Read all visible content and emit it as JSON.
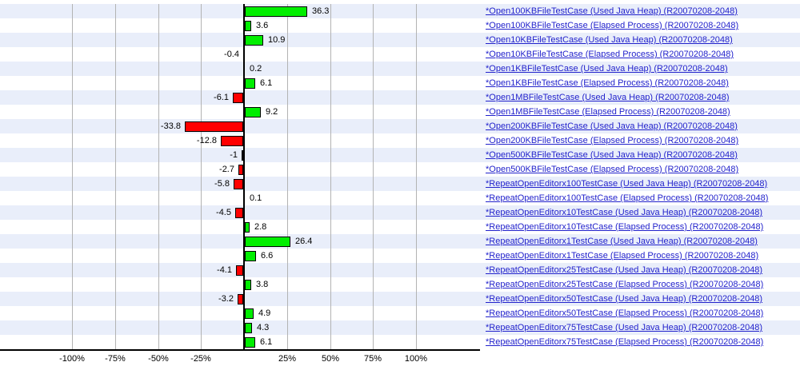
{
  "colors": {
    "positive_bar": "#00ee00",
    "negative_bar": "#ff0000",
    "bar_border": "#000000",
    "stripe": "#e9eefa",
    "stripe_alt": "#ffffff",
    "gridline": "#b3b3b3",
    "axis": "#000000",
    "link": "#2222cc",
    "value_text": "#000000"
  },
  "chart_data": {
    "type": "bar",
    "orientation": "horizontal",
    "title": "",
    "xlabel": "",
    "ylabel": "",
    "unit": "%",
    "grid": true,
    "xlim": [
      -142,
      137
    ],
    "x_ticks": [
      {
        "value": -100,
        "label": "-100%"
      },
      {
        "value": -75,
        "label": "-75%"
      },
      {
        "value": -50,
        "label": "-50%"
      },
      {
        "value": -25,
        "label": "-25%"
      },
      {
        "value": 25,
        "label": "25%"
      },
      {
        "value": 50,
        "label": "50%"
      },
      {
        "value": 75,
        "label": "75%"
      },
      {
        "value": 100,
        "label": "100%"
      }
    ],
    "rows": [
      {
        "label": "*Open100KBFileTestCase (Used Java Heap) (R20070208-2048)",
        "value": 36.3,
        "value_label": "36.3"
      },
      {
        "label": "*Open100KBFileTestCase (Elapsed Process) (R20070208-2048)",
        "value": 3.6,
        "value_label": "3.6"
      },
      {
        "label": "*Open10KBFileTestCase (Used Java Heap) (R20070208-2048)",
        "value": 10.9,
        "value_label": "10.9"
      },
      {
        "label": "*Open10KBFileTestCase (Elapsed Process) (R20070208-2048)",
        "value": -0.4,
        "value_label": "-0.4"
      },
      {
        "label": "*Open1KBFileTestCase (Used Java Heap) (R20070208-2048)",
        "value": 0.2,
        "value_label": "0.2"
      },
      {
        "label": "*Open1KBFileTestCase (Elapsed Process) (R20070208-2048)",
        "value": 6.1,
        "value_label": "6.1"
      },
      {
        "label": "*Open1MBFileTestCase (Used Java Heap) (R20070208-2048)",
        "value": -6.1,
        "value_label": "-6.1"
      },
      {
        "label": "*Open1MBFileTestCase (Elapsed Process) (R20070208-2048)",
        "value": 9.2,
        "value_label": "9.2"
      },
      {
        "label": "*Open200KBFileTestCase (Used Java Heap) (R20070208-2048)",
        "value": -33.8,
        "value_label": "-33.8"
      },
      {
        "label": "*Open200KBFileTestCase (Elapsed Process) (R20070208-2048)",
        "value": -12.8,
        "value_label": "-12.8"
      },
      {
        "label": "*Open500KBFileTestCase (Used Java Heap) (R20070208-2048)",
        "value": -1,
        "value_label": "-1"
      },
      {
        "label": "*Open500KBFileTestCase (Elapsed Process) (R20070208-2048)",
        "value": -2.7,
        "value_label": "-2.7"
      },
      {
        "label": "*RepeatOpenEditorx100TestCase (Used Java Heap) (R20070208-2048)",
        "value": -5.8,
        "value_label": "-5.8"
      },
      {
        "label": "*RepeatOpenEditorx100TestCase (Elapsed Process) (R20070208-2048)",
        "value": 0.1,
        "value_label": "0.1"
      },
      {
        "label": "*RepeatOpenEditorx10TestCase (Used Java Heap) (R20070208-2048)",
        "value": -4.5,
        "value_label": "-4.5"
      },
      {
        "label": "*RepeatOpenEditorx10TestCase (Elapsed Process) (R20070208-2048)",
        "value": 2.8,
        "value_label": "2.8"
      },
      {
        "label": "*RepeatOpenEditorx1TestCase (Used Java Heap) (R20070208-2048)",
        "value": 26.4,
        "value_label": "26.4"
      },
      {
        "label": "*RepeatOpenEditorx1TestCase (Elapsed Process) (R20070208-2048)",
        "value": 6.6,
        "value_label": "6.6"
      },
      {
        "label": "*RepeatOpenEditorx25TestCase (Used Java Heap) (R20070208-2048)",
        "value": -4.1,
        "value_label": "-4.1"
      },
      {
        "label": "*RepeatOpenEditorx25TestCase (Elapsed Process) (R20070208-2048)",
        "value": 3.8,
        "value_label": "3.8"
      },
      {
        "label": "*RepeatOpenEditorx50TestCase (Used Java Heap) (R20070208-2048)",
        "value": -3.2,
        "value_label": "-3.2"
      },
      {
        "label": "*RepeatOpenEditorx50TestCase (Elapsed Process) (R20070208-2048)",
        "value": 4.9,
        "value_label": "4.9"
      },
      {
        "label": "*RepeatOpenEditorx75TestCase (Used Java Heap) (R20070208-2048)",
        "value": 4.3,
        "value_label": "4.3"
      },
      {
        "label": "*RepeatOpenEditorx75TestCase (Elapsed Process) (R20070208-2048)",
        "value": 6.1,
        "value_label": "6.1"
      }
    ]
  }
}
